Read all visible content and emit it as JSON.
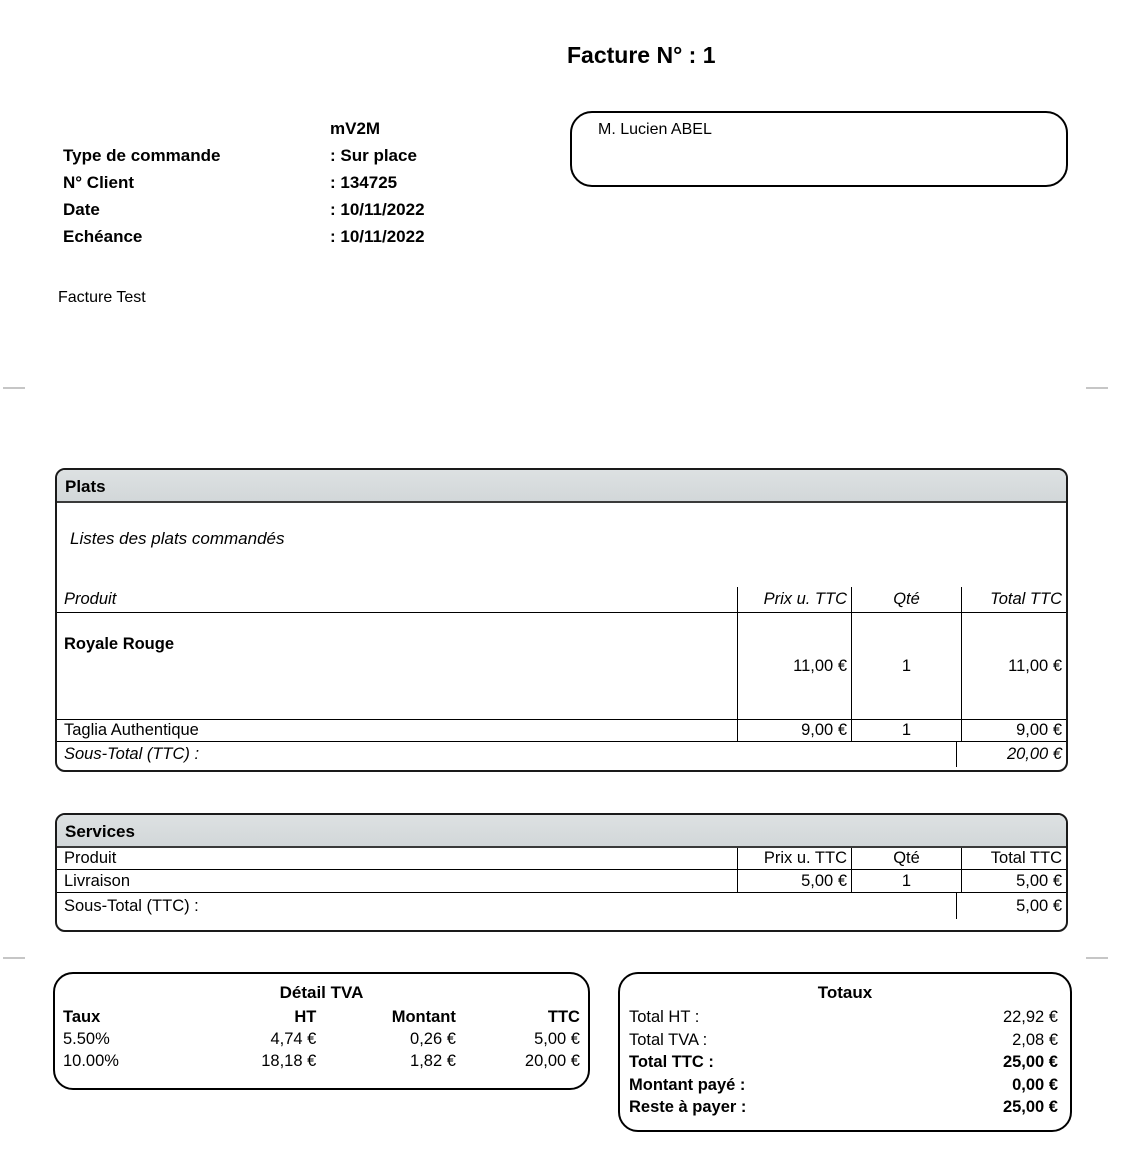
{
  "title": "Facture N° : 1",
  "info": {
    "company": "mV2M",
    "rows": [
      {
        "label": "Type de commande",
        "value": ": Sur place"
      },
      {
        "label": "N° Client",
        "value": ": 134725"
      },
      {
        "label": "Date",
        "value": ": 10/11/2022"
      },
      {
        "label": "Echéance",
        "value": ": 10/11/2022"
      }
    ]
  },
  "client": {
    "name": "M. Lucien ABEL"
  },
  "note": "Facture Test",
  "plats": {
    "section_title": "Plats",
    "description": "Listes des plats commandés",
    "columns": {
      "produit": "Produit",
      "prix": "Prix u. TTC",
      "qte": "Qté",
      "total": "Total TTC"
    },
    "rows": [
      {
        "produit": "Royale Rouge",
        "prix": "11,00 €",
        "qte": "1",
        "total": "11,00 €"
      },
      {
        "produit": "Taglia Authentique",
        "prix": "9,00 €",
        "qte": "1",
        "total": "9,00 €"
      }
    ],
    "subtotal_label": "Sous-Total (TTC) :",
    "subtotal_value": "20,00 €"
  },
  "services": {
    "section_title": "Services",
    "columns": {
      "produit": "Produit",
      "prix": "Prix u. TTC",
      "qte": "Qté",
      "total": "Total TTC"
    },
    "rows": [
      {
        "produit": "Livraison",
        "prix": "5,00 €",
        "qte": "1",
        "total": "5,00 €"
      }
    ],
    "subtotal_label": "Sous-Total (TTC) :",
    "subtotal_value": "5,00 €"
  },
  "tva": {
    "title": "Détail TVA",
    "columns": {
      "taux": "Taux",
      "ht": "HT",
      "montant": "Montant",
      "ttc": "TTC"
    },
    "rows": [
      {
        "taux": "5.50%",
        "ht": "4,74 €",
        "montant": "0,26 €",
        "ttc": "5,00 €"
      },
      {
        "taux": "10.00%",
        "ht": "18,18 €",
        "montant": "1,82 €",
        "ttc": "20,00 €"
      }
    ]
  },
  "totaux": {
    "title": "Totaux",
    "rows": [
      {
        "label": "Total HT :",
        "value": "22,92 €"
      },
      {
        "label": "Total TVA :",
        "value": "2,08 €"
      },
      {
        "label": "Total TTC :",
        "value": "25,00 €"
      },
      {
        "label": "Montant payé :",
        "value": "0,00 €"
      },
      {
        "label": "Reste à payer :",
        "value": "25,00 €"
      }
    ]
  },
  "colors": {
    "band_gray": "#d5d9db",
    "border": "#1a1a1a",
    "crop_mark": "#c6c6c6"
  }
}
